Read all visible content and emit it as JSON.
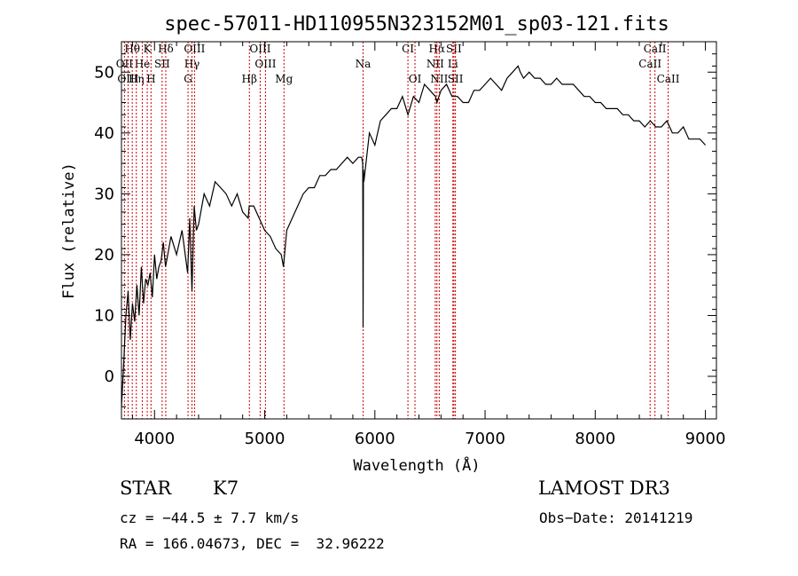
{
  "chart_data": {
    "type": "line",
    "title": "spec-57011-HD110955N323152M01_sp03-121.fits",
    "xlabel": "Wavelength (Å)",
    "ylabel": "Flux (relative)",
    "xlim": [
      3700,
      9100
    ],
    "ylim": [
      -7,
      55
    ],
    "xticks": [
      "4000",
      "5000",
      "6000",
      "7000",
      "8000",
      "9000"
    ],
    "yticks": [
      "0",
      "10",
      "20",
      "30",
      "40",
      "50"
    ],
    "spectrum": {
      "x": [
        3700,
        3720,
        3740,
        3760,
        3780,
        3800,
        3820,
        3840,
        3860,
        3880,
        3900,
        3920,
        3940,
        3960,
        3980,
        4000,
        4020,
        4040,
        4060,
        4080,
        4100,
        4150,
        4200,
        4250,
        4300,
        4320,
        4340,
        4360,
        4380,
        4400,
        4450,
        4500,
        4550,
        4600,
        4650,
        4700,
        4750,
        4800,
        4850,
        4860,
        4900,
        4950,
        5000,
        5050,
        5100,
        5150,
        5170,
        5200,
        5250,
        5300,
        5350,
        5400,
        5450,
        5500,
        5550,
        5600,
        5650,
        5700,
        5750,
        5800,
        5850,
        5880,
        5890,
        5893,
        5896,
        5900,
        5950,
        6000,
        6050,
        6100,
        6150,
        6200,
        6250,
        6300,
        6350,
        6400,
        6450,
        6500,
        6550,
        6563,
        6600,
        6650,
        6700,
        6750,
        6800,
        6850,
        6900,
        6950,
        7000,
        7050,
        7100,
        7150,
        7200,
        7250,
        7300,
        7320,
        7350,
        7400,
        7450,
        7500,
        7550,
        7600,
        7650,
        7700,
        7750,
        7800,
        7850,
        7900,
        7950,
        8000,
        8050,
        8100,
        8150,
        8200,
        8250,
        8300,
        8350,
        8400,
        8450,
        8500,
        8550,
        8600,
        8650,
        8700,
        8750,
        8800,
        8850,
        8900,
        8950,
        9000
      ],
      "y": [
        -5,
        2,
        10,
        14,
        6,
        12,
        9,
        15,
        10,
        18,
        12,
        16,
        15,
        17,
        13,
        20,
        16,
        18,
        19,
        22,
        18,
        23,
        20,
        24,
        17,
        26,
        14,
        28,
        24,
        25,
        30,
        28,
        32,
        31,
        30,
        28,
        30,
        27,
        26,
        28,
        28,
        26,
        24,
        23,
        21,
        20,
        18,
        24,
        26,
        28,
        30,
        31,
        31,
        33,
        33,
        34,
        34,
        35,
        36,
        35,
        36,
        36,
        35,
        8,
        34,
        32,
        40,
        38,
        42,
        43,
        44,
        44,
        46,
        43,
        46,
        45,
        48,
        47,
        46,
        45,
        47,
        48,
        46,
        46,
        45,
        45,
        47,
        47,
        48,
        49,
        48,
        47,
        49,
        50,
        51,
        50,
        49,
        50,
        49,
        49,
        48,
        48,
        49,
        48,
        48,
        48,
        47,
        46,
        46,
        45,
        45,
        44,
        44,
        44,
        43,
        43,
        42,
        42,
        41,
        42,
        41,
        41,
        42,
        40,
        40,
        41,
        39,
        39,
        39,
        38
      ]
    },
    "lines": [
      {
        "label": "Hθ",
        "x": 3798,
        "row": 1
      },
      {
        "label": "K",
        "x": 3934,
        "row": 1
      },
      {
        "label": "Hδ",
        "x": 4102,
        "row": 1
      },
      {
        "label": "OIII",
        "x": 4363,
        "row": 1
      },
      {
        "label": "OIII",
        "x": 4959,
        "row": 1
      },
      {
        "label": "CI",
        "x": 6300,
        "row": 1
      },
      {
        "label": "Hα",
        "x": 6563,
        "row": 1
      },
      {
        "label": "SII",
        "x": 6717,
        "row": 1
      },
      {
        "label": "CaII",
        "x": 8542,
        "row": 1
      },
      {
        "label": "OII",
        "x": 3727,
        "row": 2
      },
      {
        "label": "He",
        "x": 3889,
        "row": 2
      },
      {
        "label": "SII",
        "x": 4069,
        "row": 2
      },
      {
        "label": "Hγ",
        "x": 4340,
        "row": 2
      },
      {
        "label": "OIII",
        "x": 5007,
        "row": 2
      },
      {
        "label": "Na",
        "x": 5893,
        "row": 2
      },
      {
        "label": "NII",
        "x": 6548,
        "row": 2
      },
      {
        "label": "Li",
        "x": 6708,
        "row": 2
      },
      {
        "label": "CaII",
        "x": 8498,
        "row": 2
      },
      {
        "label": "OIII",
        "x": 3760,
        "row": 3
      },
      {
        "label": "Hη",
        "x": 3835,
        "row": 3
      },
      {
        "label": "H",
        "x": 3968,
        "row": 3
      },
      {
        "label": "G",
        "x": 4304,
        "row": 3
      },
      {
        "label": "Hβ",
        "x": 4861,
        "row": 3
      },
      {
        "label": "Mg",
        "x": 5175,
        "row": 3
      },
      {
        "label": "OI",
        "x": 6364,
        "row": 3
      },
      {
        "label": "NII",
        "x": 6584,
        "row": 3
      },
      {
        "label": "SII",
        "x": 6731,
        "row": 3
      },
      {
        "label": "CaII",
        "x": 8662,
        "row": 3
      }
    ]
  },
  "info": {
    "class_label": "STAR",
    "subclass": "K7",
    "survey": "LAMOST DR3",
    "cz": "cz = −44.5 ± 7.7 km/s",
    "obs_date": "Obs−Date: 20141219",
    "coords": "RA = 166.04673, DEC =  32.96222"
  },
  "colors": {
    "spectrum": "#000000",
    "line_marker": "#cc0000",
    "axis": "#000000"
  }
}
